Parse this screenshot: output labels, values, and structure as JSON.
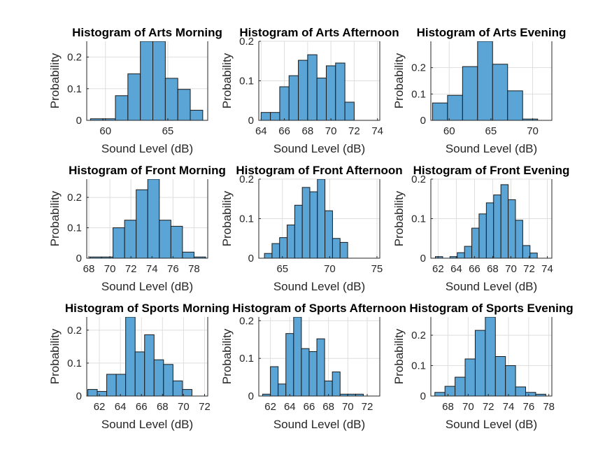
{
  "figure": {
    "bar_color": "#5ba4d6",
    "edge_color": "#1a1a1a",
    "grid": true
  },
  "chart_data": [
    {
      "type": "bar",
      "title": "Histogram of Arts Morning",
      "xlabel": "Sound Level (dB)",
      "ylabel": "Probability",
      "xlim": [
        58.5,
        68.2
      ],
      "ylim": [
        0,
        0.25
      ],
      "xticks": [
        60,
        65
      ],
      "yticks": [
        0,
        0.1,
        0.2
      ],
      "edges": [
        58.8,
        59.8,
        60.8,
        61.8,
        62.8,
        63.8,
        64.8,
        65.8,
        66.8,
        67.8
      ],
      "values": [
        0.005,
        0.005,
        0.078,
        0.147,
        0.25,
        0.25,
        0.133,
        0.098,
        0.032
      ]
    },
    {
      "type": "bar",
      "title": "Histogram of Arts Afternoon",
      "xlabel": "Sound Level (dB)",
      "ylabel": "Probability",
      "xlim": [
        63.8,
        74.2
      ],
      "ylim": [
        0,
        0.2
      ],
      "xticks": [
        64,
        66,
        68,
        70,
        72,
        74
      ],
      "yticks": [
        0,
        0.1,
        0.2
      ],
      "edges": [
        64,
        64.8,
        65.6,
        66.4,
        67.2,
        68,
        68.8,
        69.6,
        70.4,
        71.2,
        72,
        72.8,
        73.6
      ],
      "values": [
        0.02,
        0.02,
        0.085,
        0.113,
        0.152,
        0.166,
        0.107,
        0.138,
        0.145,
        0.046,
        0.0,
        0.0
      ]
    },
    {
      "type": "bar",
      "title": "Histogram of Arts Evening",
      "xlabel": "Sound Level (dB)",
      "ylabel": "Probability",
      "xlim": [
        57.8,
        72.3
      ],
      "ylim": [
        0,
        0.3
      ],
      "xticks": [
        60,
        65,
        70
      ],
      "yticks": [
        0,
        0.1,
        0.2
      ],
      "edges": [
        58,
        59.8,
        61.6,
        63.4,
        65.2,
        67,
        68.8,
        70.6,
        72.4
      ],
      "values": [
        0.066,
        0.095,
        0.204,
        0.3,
        0.213,
        0.112,
        0.005,
        0.0
      ]
    },
    {
      "type": "bar",
      "title": "Histogram of Front Morning",
      "xlabel": "Sound Level (dB)",
      "ylabel": "Probability",
      "xlim": [
        67.8,
        79.3
      ],
      "ylim": [
        0,
        0.26
      ],
      "xticks": [
        68,
        70,
        72,
        74,
        76,
        78
      ],
      "yticks": [
        0,
        0.1,
        0.2
      ],
      "edges": [
        68.1,
        69.2,
        70.3,
        71.4,
        72.5,
        73.6,
        74.7,
        75.8,
        76.9,
        78,
        79.1
      ],
      "values": [
        0.004,
        0.004,
        0.1,
        0.125,
        0.225,
        0.26,
        0.125,
        0.105,
        0.02,
        0.004
      ]
    },
    {
      "type": "bar",
      "title": "Histogram of Front Afternoon",
      "xlabel": "Sound Level (dB)",
      "ylabel": "Probability",
      "xlim": [
        62.5,
        75.3
      ],
      "ylim": [
        0,
        0.2
      ],
      "xticks": [
        65,
        70,
        75
      ],
      "yticks": [
        0,
        0.1,
        0.2
      ],
      "edges": [
        63.1,
        63.9,
        64.7,
        65.5,
        66.3,
        67.1,
        67.9,
        68.7,
        69.5,
        70.3,
        71.1,
        71.9,
        72.7,
        73.5,
        74.3
      ],
      "values": [
        0.012,
        0.037,
        0.052,
        0.084,
        0.134,
        0.179,
        0.168,
        0.2,
        0.12,
        0.05,
        0.04,
        0.0,
        0.0,
        0.0
      ]
    },
    {
      "type": "bar",
      "title": "Histogram of Front Evening",
      "xlabel": "Sound Level (dB)",
      "ylabel": "Probability",
      "xlim": [
        61.2,
        74.5
      ],
      "ylim": [
        0,
        0.2
      ],
      "xticks": [
        62,
        64,
        66,
        68,
        70,
        72,
        74
      ],
      "yticks": [
        0,
        0.1,
        0.2
      ],
      "edges": [
        61.7,
        62.5,
        63.3,
        64.1,
        64.9,
        65.7,
        66.5,
        67.3,
        68.1,
        68.9,
        69.7,
        70.5,
        71.3,
        72.1,
        72.9,
        73.7
      ],
      "values": [
        0.004,
        0.0,
        0.004,
        0.014,
        0.03,
        0.076,
        0.112,
        0.14,
        0.16,
        0.186,
        0.148,
        0.096,
        0.032,
        0.013,
        0.0
      ]
    },
    {
      "type": "bar",
      "title": "Histogram of Sports Morning",
      "xlabel": "Sound Level (dB)",
      "ylabel": "Probability",
      "xlim": [
        60.8,
        72.3
      ],
      "ylim": [
        0,
        0.24
      ],
      "xticks": [
        62,
        64,
        66,
        68,
        70,
        72
      ],
      "yticks": [
        0,
        0.1,
        0.2
      ],
      "edges": [
        60.9,
        61.8,
        62.7,
        63.6,
        64.5,
        65.4,
        66.3,
        67.2,
        68.1,
        69,
        69.9,
        70.8,
        71.7
      ],
      "values": [
        0.02,
        0.014,
        0.066,
        0.066,
        0.24,
        0.134,
        0.186,
        0.11,
        0.096,
        0.046,
        0.02,
        0.0
      ]
    },
    {
      "type": "bar",
      "title": "Histogram of Sports Afternoon",
      "xlabel": "Sound Level (dB)",
      "ylabel": "Probability",
      "xlim": [
        60.8,
        73.3
      ],
      "ylim": [
        0,
        0.21
      ],
      "xticks": [
        62,
        64,
        66,
        68,
        70,
        72
      ],
      "yticks": [
        0,
        0.1,
        0.2
      ],
      "edges": [
        61.2,
        62,
        62.8,
        63.6,
        64.4,
        65.2,
        66,
        66.8,
        67.6,
        68.4,
        69.2,
        70,
        70.8,
        71.6,
        72.4,
        73.2
      ],
      "values": [
        0.005,
        0.078,
        0.032,
        0.166,
        0.21,
        0.126,
        0.118,
        0.152,
        0.04,
        0.064,
        0.005,
        0.005,
        0.005,
        0.0,
        0.0
      ]
    },
    {
      "type": "bar",
      "title": "Histogram of Sports Evening",
      "xlabel": "Sound Level (dB)",
      "ylabel": "Probability",
      "xlim": [
        66.3,
        78.3
      ],
      "ylim": [
        0,
        0.26
      ],
      "xticks": [
        68,
        70,
        72,
        74,
        76,
        78
      ],
      "yticks": [
        0,
        0.1,
        0.2
      ],
      "edges": [
        66.7,
        67.7,
        68.7,
        69.7,
        70.7,
        71.7,
        72.7,
        73.7,
        74.7,
        75.7,
        76.7,
        77.7
      ],
      "values": [
        0.012,
        0.032,
        0.062,
        0.122,
        0.216,
        0.26,
        0.13,
        0.1,
        0.03,
        0.012,
        0.006
      ]
    }
  ]
}
